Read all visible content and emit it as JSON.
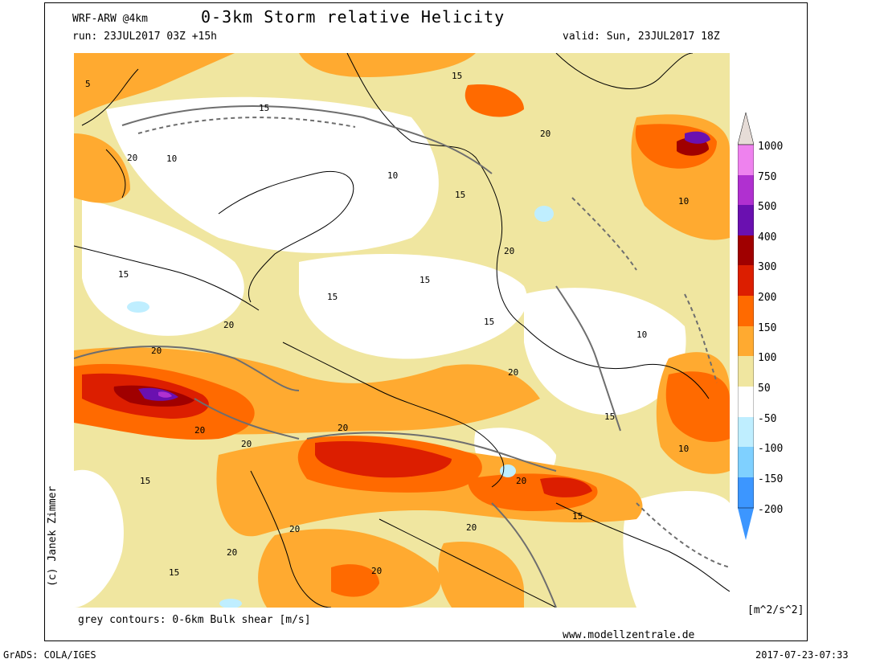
{
  "header": {
    "model": "WRF-ARW @4km",
    "title": "0-3km Storm relative Helicity",
    "run": "run: 23JUL2017 03Z +15h",
    "valid": "valid: Sun, 23JUL2017 18Z"
  },
  "footer": {
    "caption": "grey contours: 0-6km Bulk shear [m/s]",
    "website": "www.modellzentrale.de",
    "grads": "GrADS: COLA/IGES",
    "timestamp": "2017-07-23-07:33",
    "copyright": "(c) Janek Zimmer"
  },
  "colorbar": {
    "units": "[m^2/s^2]",
    "labels": [
      "1000",
      "750",
      "500",
      "400",
      "300",
      "200",
      "150",
      "100",
      "50",
      "-50",
      "-100",
      "-150",
      "-200"
    ],
    "colors": [
      "#e6dcd7",
      "#ee82ee",
      "#b030d0",
      "#6a10b0",
      "#a00000",
      "#dc1e00",
      "#ff6a00",
      "#ffaa30",
      "#f0e6a0",
      "#ffffff",
      "#bfeeff",
      "#7fd0ff",
      "#3c96ff"
    ]
  },
  "map": {
    "contour_labels": [
      "5",
      "10",
      "15",
      "20"
    ]
  }
}
